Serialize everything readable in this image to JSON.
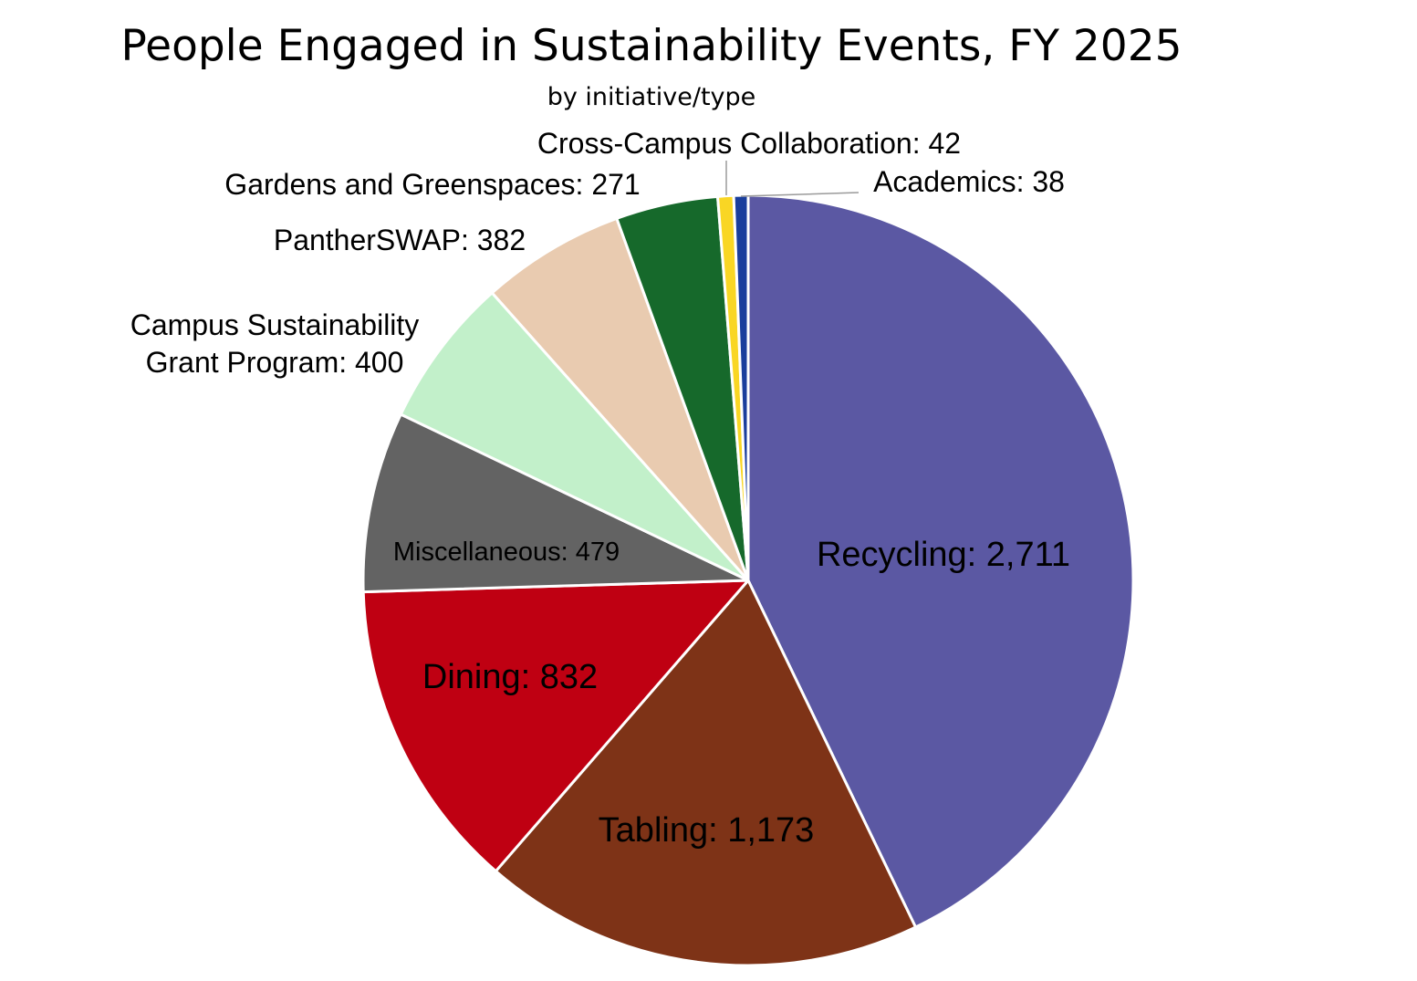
{
  "chart_data": {
    "type": "pie",
    "title": "People Engaged in Sustainability Events, FY 2025",
    "subtitle": "by initiative/type",
    "slices": [
      {
        "name": "Recycling",
        "value": 2711,
        "label": "Recycling: 2,711",
        "color": "#5B58A3",
        "text_color": "#FFFFFF"
      },
      {
        "name": "Tabling",
        "value": 1173,
        "label": "Tabling: 1,173",
        "color": "#7E3317",
        "text_color": "#FFFFFF"
      },
      {
        "name": "Dining",
        "value": 832,
        "label": "Dining: 832",
        "color": "#BF0012",
        "text_color": "#FFFFFF"
      },
      {
        "name": "Miscellaneous",
        "value": 479,
        "label": "Miscellaneous: 479",
        "color": "#636363",
        "text_color": "#FFFFFF"
      },
      {
        "name": "Campus Sustainability Grant Program",
        "value": 400,
        "label": "Campus Sustainability Grant Program: 400",
        "label_lines": [
          "Campus Sustainability",
          "Grant Program: 400"
        ],
        "color": "#C2F0CA",
        "text_color": "#000000"
      },
      {
        "name": "PantherSWAP",
        "value": 382,
        "label": "PantherSWAP: 382",
        "color": "#E9CBB0",
        "text_color": "#000000"
      },
      {
        "name": "Gardens and Greenspaces",
        "value": 271,
        "label": "Gardens and Greenspaces: 271",
        "color": "#16692B",
        "text_color": "#000000"
      },
      {
        "name": "Cross-Campus Collaboration",
        "value": 42,
        "label": "Cross-Campus Collaboration: 42",
        "color": "#F9D624",
        "text_color": "#000000"
      },
      {
        "name": "Academics",
        "value": 38,
        "label": "Academics: 38",
        "color": "#1A3E9C",
        "text_color": "#000000"
      }
    ],
    "start_angle": "12 o'clock",
    "direction": "clockwise",
    "legend": "none"
  }
}
